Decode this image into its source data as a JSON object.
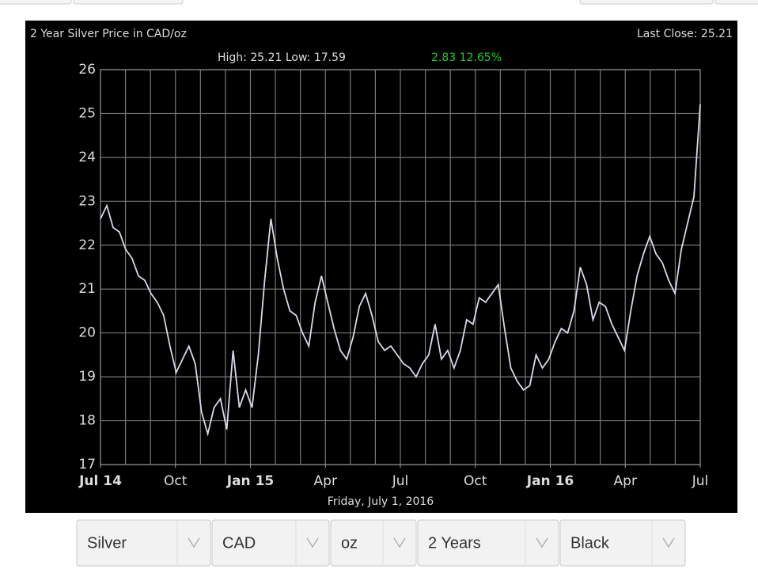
{
  "chart_data": {
    "type": "line",
    "title": "2 Year Silver Price in CAD/oz",
    "last_close": "Last Close: 25.21",
    "stats": "High: 25.21 Low: 17.59",
    "change": "2.83 12.65%",
    "footer": "Friday, July 1, 2016",
    "color": "#d8d8e8",
    "change_color": "#22cc22",
    "values": [
      22.6,
      22.9,
      22.4,
      22.3,
      21.9,
      21.7,
      21.3,
      21.2,
      20.9,
      20.7,
      20.4,
      19.7,
      19.1,
      19.4,
      19.7,
      19.3,
      18.2,
      17.7,
      18.3,
      18.5,
      17.8,
      19.6,
      18.3,
      18.7,
      18.3,
      19.5,
      21.2,
      22.6,
      21.7,
      21.0,
      20.5,
      20.4,
      20.0,
      19.7,
      20.7,
      21.3,
      20.7,
      20.1,
      19.6,
      19.4,
      19.9,
      20.6,
      20.9,
      20.4,
      19.8,
      19.6,
      19.7,
      19.5,
      19.3,
      19.2,
      19.0,
      19.3,
      19.5,
      20.2,
      19.4,
      19.6,
      19.2,
      19.6,
      20.3,
      20.2,
      20.8,
      20.7,
      20.9,
      21.1,
      20.1,
      19.2,
      18.9,
      18.7,
      18.8,
      19.5,
      19.2,
      19.4,
      19.8,
      20.1,
      20.0,
      20.5,
      21.5,
      21.1,
      20.3,
      20.7,
      20.6,
      20.2,
      19.9,
      19.6,
      20.5,
      21.3,
      21.8,
      22.2,
      21.8,
      21.6,
      21.2,
      20.9,
      21.9,
      22.5,
      23.1,
      25.21
    ],
    "xlim": [
      0,
      24
    ],
    "xticks": [
      {
        "value": 0,
        "label": "Jul 14"
      },
      {
        "value": 3,
        "label": "Oct"
      },
      {
        "value": 6,
        "label": "Jan 15"
      },
      {
        "value": 9,
        "label": "Apr"
      },
      {
        "value": 12,
        "label": "Jul"
      },
      {
        "value": 15,
        "label": "Oct"
      },
      {
        "value": 18,
        "label": "Jan 16"
      },
      {
        "value": 21,
        "label": "Apr"
      },
      {
        "value": 24,
        "label": "Jul"
      }
    ],
    "xgrid": [
      0,
      1,
      2,
      3,
      4,
      5,
      6,
      7,
      8,
      9,
      10,
      11,
      12,
      13,
      14,
      15,
      16,
      17,
      18,
      19,
      20,
      21,
      22,
      23,
      24
    ],
    "ylim": [
      17,
      26
    ],
    "yticks": [
      17,
      18,
      19,
      20,
      21,
      22,
      23,
      24,
      25,
      26
    ],
    "grid": true
  },
  "controls": [
    "Silver",
    "CAD",
    "oz",
    "2 Years",
    "Black"
  ]
}
